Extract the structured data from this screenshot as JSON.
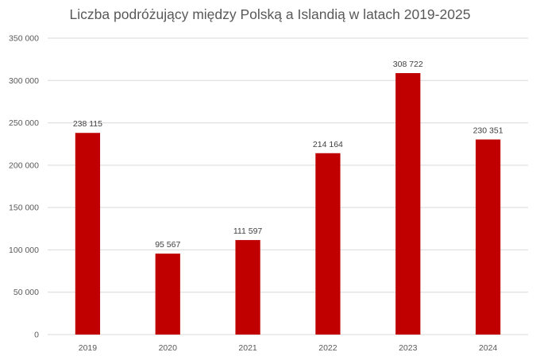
{
  "chart_data": {
    "type": "bar",
    "title": "Liczba podróżujący między Polską a Islandią w latach 2019-2025",
    "xlabel": "",
    "ylabel": "",
    "categories": [
      "2019",
      "2020",
      "2021",
      "2022",
      "2023",
      "2024"
    ],
    "values": [
      238115,
      95567,
      111597,
      214164,
      308722,
      230351
    ],
    "value_labels": [
      "238 115",
      "95 567",
      "111 597",
      "214 164",
      "308 722",
      "230 351"
    ],
    "ylim": [
      0,
      350000
    ],
    "yticks": [
      0,
      50000,
      100000,
      150000,
      200000,
      250000,
      300000,
      350000
    ],
    "ytick_labels": [
      "0",
      "50 000",
      "100 000",
      "150 000",
      "200 000",
      "250 000",
      "300 000",
      "350 000"
    ],
    "grid": true,
    "legend": "none",
    "bar_color": "#C00000",
    "gridline_color": "#D9D9D9",
    "text_color": "#595959"
  }
}
